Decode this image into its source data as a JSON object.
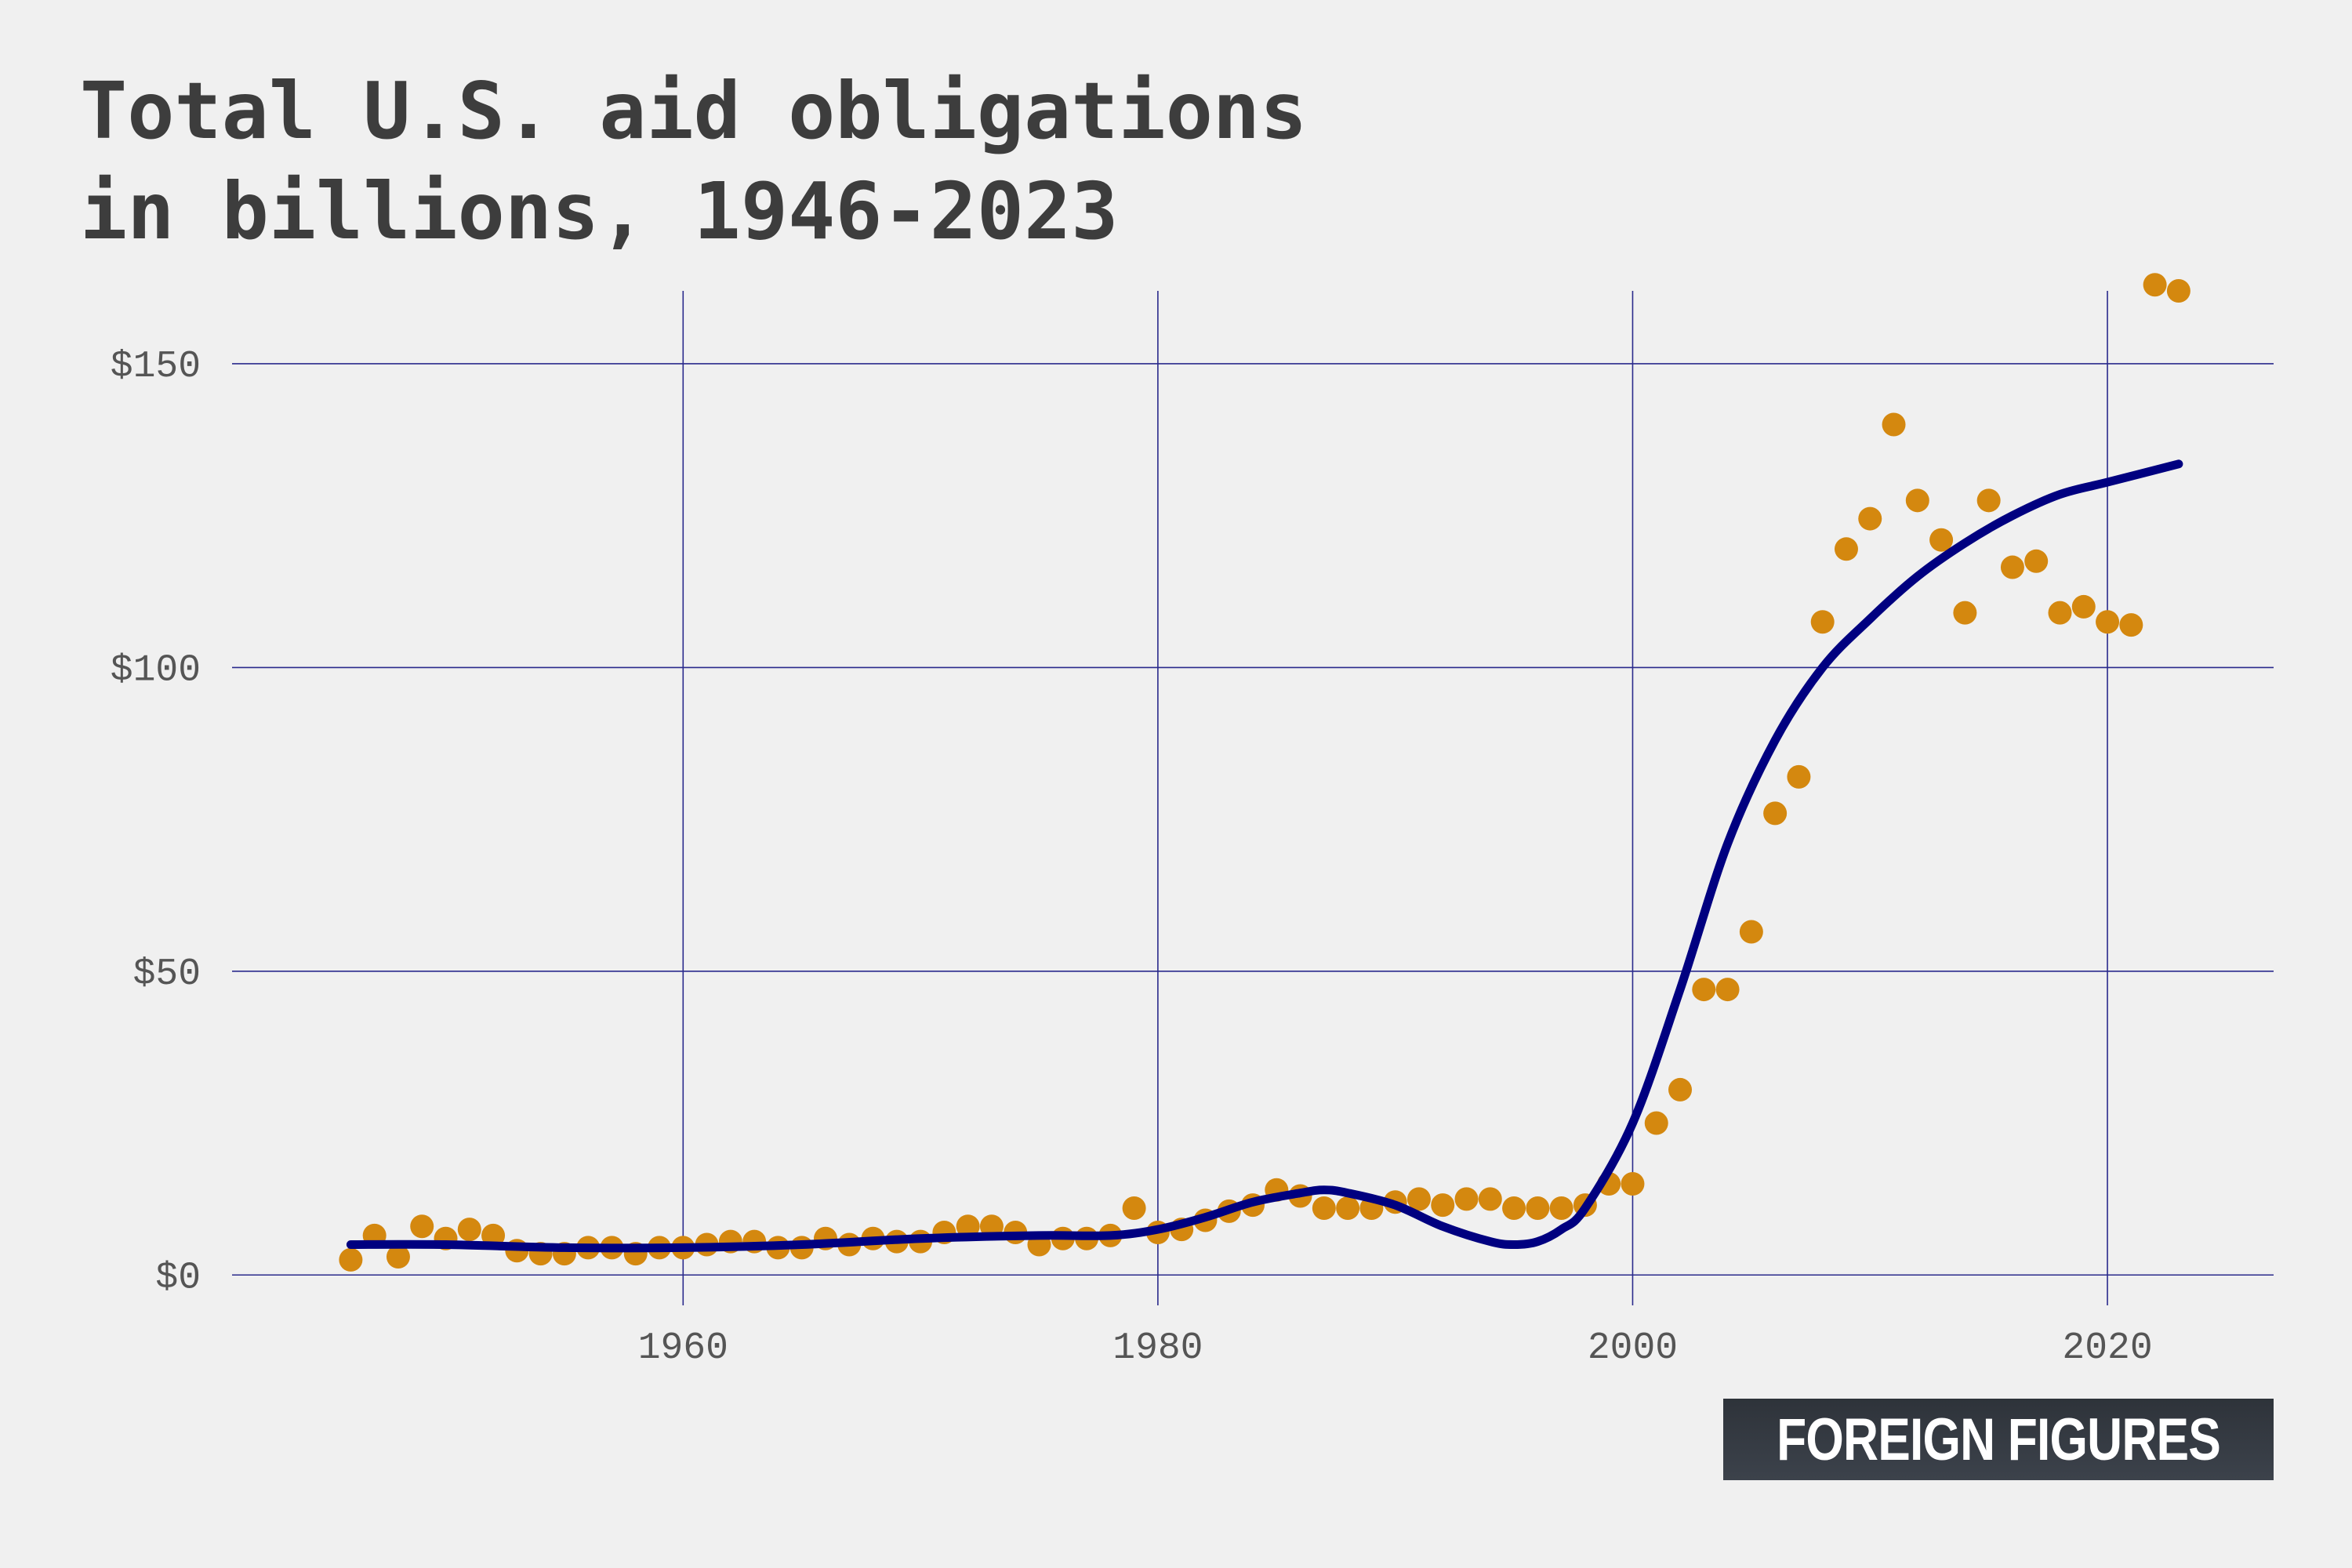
{
  "title_lines": [
    "Total U.S. aid obligations",
    "in billions, 1946-2023"
  ],
  "brand": "FOREIGN FIGURES",
  "colors": {
    "background": "#f0f0f0",
    "grid": "#2a2a8c",
    "points": "#d4880f",
    "trend": "#000080",
    "title": "#3d3d3d"
  },
  "chart_data": {
    "type": "scatter",
    "title": "Total U.S. aid obligations in billions, 1946-2023",
    "xlabel": "",
    "ylabel": "",
    "xlim": [
      1941,
      2027
    ],
    "ylim": [
      -5,
      162
    ],
    "x_ticks": [
      1960,
      1980,
      2000,
      2020
    ],
    "x_tick_labels": [
      "1960",
      "1980",
      "2000",
      "2020"
    ],
    "y_ticks": [
      0,
      50,
      100,
      150
    ],
    "y_tick_labels": [
      "$0",
      "$50",
      "$100",
      "$150"
    ],
    "grid": true,
    "legend": "none",
    "series": [
      {
        "kind": "points",
        "x": [
          1946,
          1947,
          1948,
          1949,
          1950,
          1951,
          1952,
          1953,
          1954,
          1955,
          1956,
          1957,
          1958,
          1959,
          1960,
          1961,
          1962,
          1963,
          1964,
          1965,
          1966,
          1967,
          1968,
          1969,
          1970,
          1971,
          1972,
          1973,
          1974,
          1975,
          1976,
          1977,
          1978,
          1979,
          1980,
          1981,
          1982,
          1983,
          1984,
          1985,
          1986,
          1987,
          1988,
          1989,
          1990,
          1991,
          1992,
          1993,
          1994,
          1995,
          1996,
          1997,
          1998,
          1999,
          2000,
          2001,
          2002,
          2003,
          2004,
          2005,
          2006,
          2007,
          2008,
          2009,
          2010,
          2011,
          2012,
          2013,
          2014,
          2015,
          2016,
          2017,
          2018,
          2019,
          2020,
          2021,
          2022,
          2023
        ],
        "y": [
          2.5,
          6.5,
          3.0,
          8.0,
          6.0,
          7.5,
          6.5,
          4.0,
          3.5,
          3.5,
          4.5,
          4.5,
          3.5,
          4.5,
          4.5,
          5.0,
          5.5,
          5.5,
          4.5,
          4.5,
          6.0,
          5.0,
          6.0,
          5.5,
          5.5,
          7.0,
          8.0,
          8.0,
          7.0,
          5.0,
          6.0,
          6.0,
          6.5,
          11.0,
          7.0,
          7.5,
          9.0,
          10.5,
          11.5,
          14.0,
          13.0,
          11.0,
          11.0,
          11.0,
          12.0,
          12.5,
          11.5,
          12.5,
          12.5,
          11.0,
          11.0,
          11.0,
          11.5,
          15.0,
          15.0,
          25.0,
          30.5,
          47.0,
          47.0,
          56.5,
          76.0,
          82.0,
          107.5,
          119.5,
          124.5,
          140.0,
          127.5,
          121.0,
          109.0,
          127.5,
          116.5,
          117.5,
          109.0,
          110.0,
          107.5,
          107.0,
          163.0,
          162.0
        ]
      },
      {
        "kind": "trend",
        "x": [
          1946,
          1950,
          1955,
          1960,
          1965,
          1970,
          1975,
          1978,
          1980,
          1982,
          1984,
          1986,
          1987,
          1988,
          1990,
          1992,
          1994,
          1995,
          1996,
          1997,
          1998,
          2000,
          2002,
          2004,
          2006,
          2008,
          2010,
          2012,
          2014,
          2016,
          2018,
          2020,
          2023
        ],
        "y": [
          5.0,
          5.0,
          4.5,
          4.5,
          5.0,
          6.0,
          6.5,
          6.5,
          7.5,
          9.5,
          12.0,
          13.5,
          14.0,
          13.5,
          11.5,
          8.0,
          5.5,
          5.0,
          5.5,
          7.5,
          11.0,
          25.0,
          47.0,
          71.0,
          88.0,
          100.0,
          108.0,
          115.0,
          120.5,
          125.0,
          128.5,
          130.5,
          133.5
        ]
      }
    ]
  }
}
